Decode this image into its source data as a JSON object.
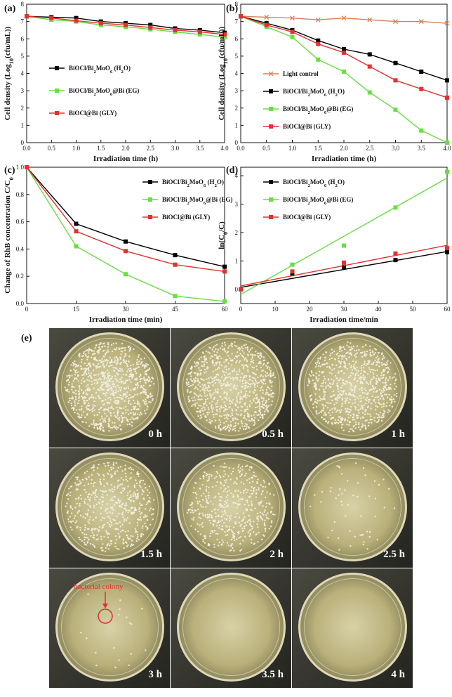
{
  "chart_data": [
    {
      "id": "a",
      "panel_label": "(a)",
      "type": "line",
      "xlabel": "Irradiation time (h)",
      "ylabel": "Cell density (Log10(cfu/mL))",
      "xlim": [
        0,
        4
      ],
      "ylim": [
        0,
        8
      ],
      "xticks": [
        "0.0",
        "0.5",
        "1.0",
        "1.5",
        "2.0",
        "2.5",
        "3.0",
        "3.5",
        "4.0"
      ],
      "yticks": [
        "0",
        "1",
        "2",
        "3",
        "4",
        "5",
        "6",
        "7",
        "8"
      ],
      "x": [
        0,
        0.5,
        1.0,
        1.5,
        2.0,
        2.5,
        3.0,
        3.5,
        4.0
      ],
      "legend_position": "center-left",
      "series": [
        {
          "name": "BiOCl/Bi2MoO6 (H2O)",
          "color": "#000000",
          "marker": "square",
          "values": [
            7.3,
            7.25,
            7.2,
            7.0,
            6.9,
            6.8,
            6.6,
            6.5,
            6.35
          ]
        },
        {
          "name": "BiOCl/Bi2MoO6@Bi (EG)",
          "color": "#66e040",
          "marker": "square",
          "values": [
            7.3,
            7.1,
            7.0,
            6.8,
            6.7,
            6.55,
            6.4,
            6.25,
            6.1
          ]
        },
        {
          "name": "BiOCl@Bi (GLY)",
          "color": "#e53030",
          "marker": "square",
          "values": [
            7.3,
            7.2,
            7.05,
            6.9,
            6.8,
            6.65,
            6.5,
            6.4,
            6.25
          ]
        }
      ]
    },
    {
      "id": "b",
      "panel_label": "(b)",
      "type": "line",
      "xlabel": "Irradiation time (h)",
      "ylabel": "Cell density (Log10(cfu/mL))",
      "xlim": [
        0,
        4
      ],
      "ylim": [
        0,
        8
      ],
      "xticks": [
        "0.0",
        "0.5",
        "1.0",
        "1.5",
        "2.0",
        "2.5",
        "3.0",
        "3.5",
        "4.0"
      ],
      "yticks": [
        "0",
        "1",
        "2",
        "3",
        "4",
        "5",
        "6",
        "7",
        "8"
      ],
      "x": [
        0,
        0.5,
        1.0,
        1.5,
        2.0,
        2.5,
        3.0,
        3.5,
        4.0
      ],
      "legend_position": "center-left",
      "series": [
        {
          "name": "Light control",
          "color": "#d9805a",
          "marker": "cross",
          "values": [
            7.3,
            7.25,
            7.2,
            7.1,
            7.2,
            7.1,
            7.0,
            7.0,
            6.9
          ]
        },
        {
          "name": "BiOCl/Bi2MoO6 (H2O)",
          "color": "#000000",
          "marker": "square",
          "values": [
            7.3,
            6.9,
            6.5,
            5.9,
            5.4,
            5.1,
            4.6,
            4.1,
            3.6
          ]
        },
        {
          "name": "BiOCl/Bi2MoO6@Bi (EG)",
          "color": "#66e040",
          "marker": "square",
          "values": [
            7.3,
            6.7,
            6.1,
            4.8,
            4.1,
            2.9,
            1.9,
            0.7,
            0.0
          ]
        },
        {
          "name": "BiOCl@Bi (GLY)",
          "color": "#e53030",
          "marker": "square",
          "values": [
            7.3,
            6.8,
            6.4,
            5.7,
            5.2,
            4.4,
            3.6,
            3.1,
            2.6
          ]
        }
      ]
    },
    {
      "id": "c",
      "panel_label": "(c)",
      "type": "line",
      "xlabel": "Irradiation time (min)",
      "ylabel": "Change of RhB concentration C/C0",
      "xlim": [
        0,
        60
      ],
      "ylim": [
        0,
        1.0
      ],
      "xticks": [
        "0",
        "15",
        "30",
        "45",
        "60"
      ],
      "yticks": [
        "0.0",
        "0.2",
        "0.4",
        "0.6",
        "0.8",
        "1.0"
      ],
      "x": [
        0,
        15,
        30,
        45,
        60
      ],
      "legend_position": "top-right",
      "series": [
        {
          "name": "BiOCl/Bi2MoO6 (H2O)",
          "color": "#000000",
          "marker": "square",
          "values": [
            1.0,
            0.585,
            0.455,
            0.355,
            0.27
          ]
        },
        {
          "name": "BiOCl/Bi2MoO6@Bi (EG)",
          "color": "#66e040",
          "marker": "square",
          "values": [
            1.0,
            0.42,
            0.215,
            0.055,
            0.015
          ]
        },
        {
          "name": "BiOCl@Bi (GLY)",
          "color": "#e53030",
          "marker": "square",
          "values": [
            1.0,
            0.53,
            0.385,
            0.285,
            0.235
          ]
        }
      ]
    },
    {
      "id": "d",
      "panel_label": "(d)",
      "type": "scatter",
      "xlabel": "Irradiation time/min",
      "ylabel": "ln(C0/C)",
      "xlim": [
        0,
        60
      ],
      "ylim": [
        -0.5,
        4.3
      ],
      "xticks": [
        "0",
        "10",
        "20",
        "30",
        "40",
        "50",
        "60"
      ],
      "yticks": [
        "0",
        "1",
        "2",
        "3",
        "4"
      ],
      "x": [
        0,
        15,
        30,
        45,
        60
      ],
      "legend_position": "top-left",
      "series": [
        {
          "name": "BiOCl/Bi2MoO6 (H2O)",
          "color": "#000000",
          "marker": "square",
          "values": [
            0.0,
            0.54,
            0.79,
            1.03,
            1.31
          ],
          "fit": [
            0.07,
            1.33
          ]
        },
        {
          "name": "BiOCl/Bi2MoO6@Bi (EG)",
          "color": "#66e040",
          "marker": "square",
          "values": [
            0.0,
            0.87,
            1.54,
            2.88,
            4.14
          ],
          "fit": [
            -0.18,
            3.92
          ]
        },
        {
          "name": "BiOCl@Bi (GLY)",
          "color": "#e53030",
          "marker": "square",
          "values": [
            0.0,
            0.63,
            0.94,
            1.26,
            1.45
          ],
          "fit": [
            0.12,
            1.55
          ]
        }
      ]
    }
  ],
  "photos": {
    "panel_label": "(e)",
    "annotation": "bacterial colony",
    "plates": [
      {
        "time": "0 h",
        "density": 1.0
      },
      {
        "time": "0.5 h",
        "density": 0.95
      },
      {
        "time": "1 h",
        "density": 0.88
      },
      {
        "time": "1.5 h",
        "density": 0.6
      },
      {
        "time": "2 h",
        "density": 0.55
      },
      {
        "time": "2.5 h",
        "density": 0.06
      },
      {
        "time": "3 h",
        "density": 0.02
      },
      {
        "time": "3.5 h",
        "density": 0.0
      },
      {
        "time": "4 h",
        "density": 0.0
      }
    ]
  }
}
